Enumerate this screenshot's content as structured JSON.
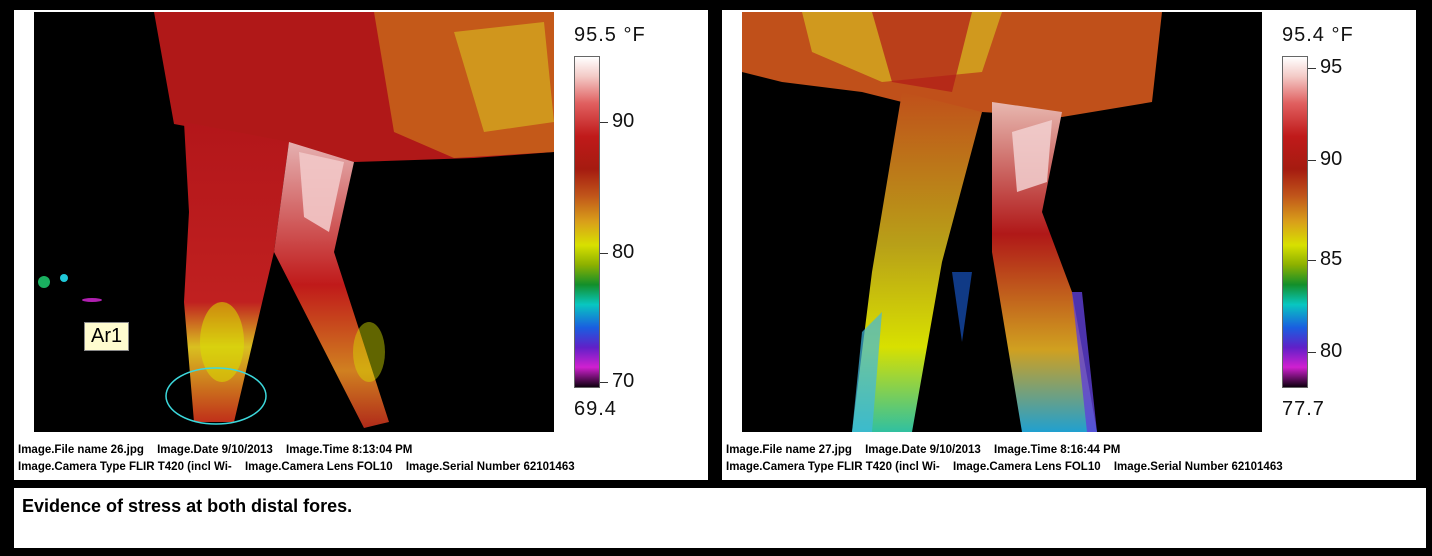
{
  "panels": [
    {
      "scale_max": "95.5 °F",
      "scale_min": "69.4",
      "ticks": [
        "90",
        "80",
        "70"
      ],
      "area_label": "Ar1",
      "meta": {
        "file_name": "Image.File name 26.jpg",
        "date": "Image.Date 9/10/2013",
        "time": "Image.Time 8:13:04 PM",
        "camera_type": "Image.Camera Type FLIR T420 (incl Wi-",
        "camera_lens": "Image.Camera Lens FOL10",
        "serial": "Image.Serial Number 62101463"
      }
    },
    {
      "scale_max": "95.4 °F",
      "scale_min": "77.7",
      "ticks": [
        "95",
        "90",
        "85",
        "80"
      ],
      "meta": {
        "file_name": "Image.File name 27.jpg",
        "date": "Image.Date 9/10/2013",
        "time": "Image.Time 8:16:44 PM",
        "camera_type": "Image.Camera Type FLIR T420 (incl Wi-",
        "camera_lens": "Image.Camera Lens FOL10",
        "serial": "Image.Serial Number 62101463"
      }
    }
  ],
  "caption": "Evidence of stress at both distal fores.",
  "colors": {
    "hot": "#c01a1a",
    "warm": "#d9a01a",
    "mild": "#d8e000",
    "cool": "#08c7c0",
    "cold": "#1a5ee0",
    "marker": "#3cd8dc"
  }
}
